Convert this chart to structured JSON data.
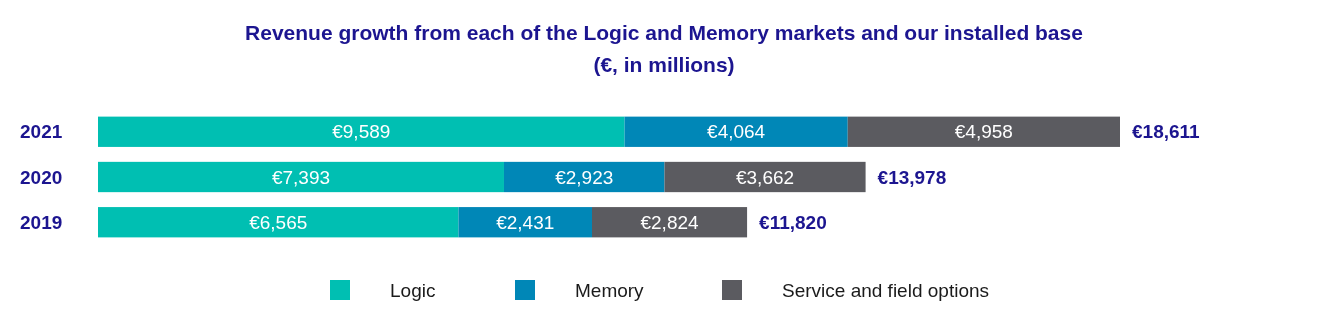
{
  "chart_data": {
    "type": "bar",
    "orientation": "horizontal",
    "stacked": true,
    "title": "Revenue growth from each of the Logic and Memory markets and our installed base",
    "subtitle": "(€, in millions)",
    "categories": [
      "2021",
      "2020",
      "2019"
    ],
    "series": [
      {
        "name": "Logic",
        "color": "#00bfb2",
        "values": [
          9589,
          7393,
          6565
        ],
        "value_labels": [
          "€9,589",
          "€7,393",
          "€6,565"
        ]
      },
      {
        "name": "Memory",
        "color": "#0087b7",
        "values": [
          4064,
          2923,
          2431
        ],
        "value_labels": [
          "€4,064",
          "€2,923",
          "€2,431"
        ]
      },
      {
        "name": "Service and field options",
        "color": "#5b5b60",
        "values": [
          4958,
          3662,
          2824
        ],
        "value_labels": [
          "€4,958",
          "€3,662",
          "€2,824"
        ]
      }
    ],
    "totals": [
      "€18,611",
      "€13,978",
      "€11,820"
    ],
    "tick_labels": "y",
    "legend": "bottom",
    "grid": false
  }
}
